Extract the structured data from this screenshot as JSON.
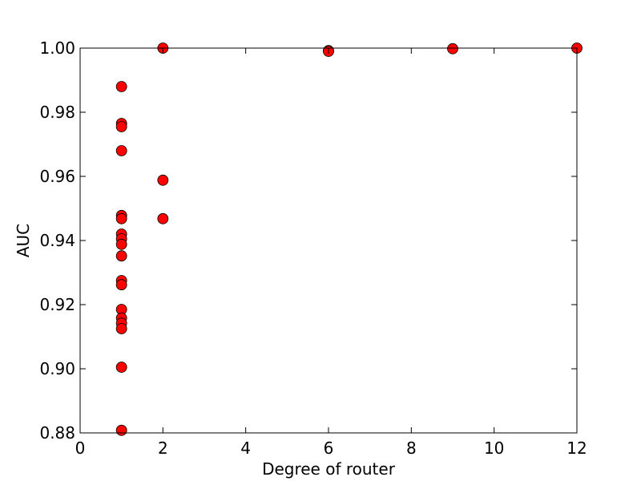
{
  "chart_data": {
    "type": "scatter",
    "title": "",
    "xlabel": "Degree of router",
    "ylabel": "AUC",
    "xlim": [
      0,
      12
    ],
    "ylim": [
      0.88,
      1.0
    ],
    "xticks": [
      0,
      2,
      4,
      6,
      8,
      10,
      12
    ],
    "yticks": [
      0.88,
      0.9,
      0.92,
      0.94,
      0.96,
      0.98,
      1.0
    ],
    "xtick_labels": [
      "0",
      "2",
      "4",
      "6",
      "8",
      "10",
      "12"
    ],
    "ytick_labels": [
      "0.88",
      "0.90",
      "0.92",
      "0.94",
      "0.96",
      "0.98",
      "1.00"
    ],
    "grid": false,
    "marker_color": "#ff0000",
    "marker_edge_color": "#000000",
    "series": [
      {
        "points": [
          [
            1,
            0.988
          ],
          [
            1,
            0.9765
          ],
          [
            1,
            0.9755
          ],
          [
            1,
            0.968
          ],
          [
            1,
            0.9478
          ],
          [
            1,
            0.9468
          ],
          [
            1,
            0.942
          ],
          [
            1,
            0.9405
          ],
          [
            1,
            0.9388
          ],
          [
            1,
            0.9352
          ],
          [
            1,
            0.9275
          ],
          [
            1,
            0.9262
          ],
          [
            1,
            0.9185
          ],
          [
            1,
            0.9158
          ],
          [
            1,
            0.9142
          ],
          [
            1,
            0.9125
          ],
          [
            1,
            0.9005
          ],
          [
            1,
            0.8808
          ],
          [
            2,
            1.0
          ],
          [
            2,
            0.9588
          ],
          [
            2,
            0.9468
          ],
          [
            6,
            0.9992
          ],
          [
            6,
            0.999
          ],
          [
            9,
            0.9998
          ],
          [
            12,
            1.0
          ]
        ]
      }
    ]
  }
}
